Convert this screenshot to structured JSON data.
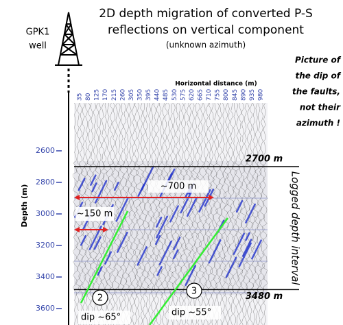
{
  "title": {
    "line1": "2D depth migration of converted P-S",
    "line2": "reflections on vertical component",
    "subtitle": "(unknown azimuth)"
  },
  "well_label_lines": [
    "GPK1",
    "well"
  ],
  "note_lines": [
    "Picture of",
    "the dip of",
    "the faults,",
    "not their",
    "azimuth !"
  ],
  "x_axis": {
    "label": "Horizontal distance (m)",
    "ticks": [
      35,
      80,
      125,
      170,
      215,
      260,
      305,
      350,
      395,
      440,
      485,
      530,
      575,
      620,
      665,
      710,
      755,
      800,
      845,
      890,
      935,
      980
    ]
  },
  "y_axis": {
    "label": "Depth (m)",
    "ticks": [
      2600,
      2800,
      3000,
      3200,
      3400,
      3600
    ]
  },
  "markers": [
    {
      "label": "2700 m",
      "depth": 2700
    },
    {
      "label": "3480 m",
      "depth": 3480
    }
  ],
  "interval_label": "Logged depth interval",
  "distances": [
    {
      "label": "~700 m"
    },
    {
      "label": "~150 m"
    }
  ],
  "faults": [
    {
      "number": "2",
      "dip": "dip ~65°"
    },
    {
      "number": "3",
      "dip": "dip ~55°"
    }
  ]
}
